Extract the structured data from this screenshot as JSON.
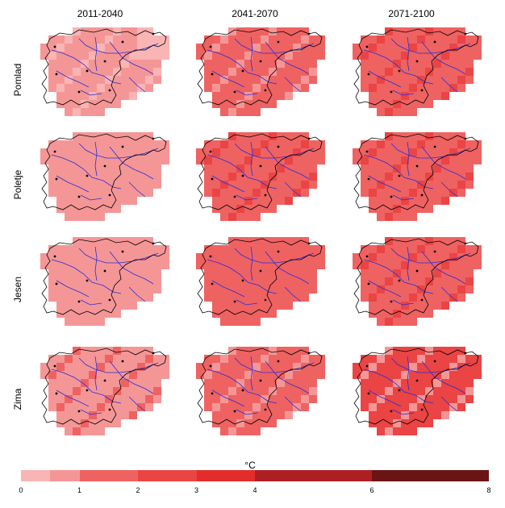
{
  "columns": [
    "2011-2040",
    "2041-2070",
    "2071-2100"
  ],
  "rows": [
    "Pomlad",
    "Poletje",
    "Jesen",
    "Zima"
  ],
  "legend": {
    "title": "°C",
    "ticks": [
      "0",
      "1",
      "2",
      "3",
      "4",
      "6",
      "8"
    ],
    "classes": [
      {
        "from": 0,
        "to": 0.5,
        "color": "#f9b4b4"
      },
      {
        "from": 0.5,
        "to": 1,
        "color": "#f59696"
      },
      {
        "from": 1,
        "to": 2,
        "color": "#ef6262"
      },
      {
        "from": 2,
        "to": 3,
        "color": "#ea4444"
      },
      {
        "from": 3,
        "to": 4,
        "color": "#e42c2c"
      },
      {
        "from": 4,
        "to": 6,
        "color": "#ad1f23"
      },
      {
        "from": 6,
        "to": 8,
        "color": "#6b1414"
      }
    ]
  },
  "panels": [
    [
      {
        "base": "#f59696",
        "accent": "#f9b4b4"
      },
      {
        "base": "#ef6262",
        "accent": "#f59696"
      },
      {
        "base": "#ef6262",
        "accent": "#ea4444"
      }
    ],
    [
      {
        "base": "#f59696",
        "accent": "#f59696"
      },
      {
        "base": "#ef6262",
        "accent": "#ea4444"
      },
      {
        "base": "#ef6262",
        "accent": "#ea4444"
      }
    ],
    [
      {
        "base": "#f59696",
        "accent": "#f59696"
      },
      {
        "base": "#ef6262",
        "accent": "#ef6262"
      },
      {
        "base": "#ef6262",
        "accent": "#ea4444"
      }
    ],
    [
      {
        "base": "#f59696",
        "accent": "#ef6262"
      },
      {
        "base": "#ef6262",
        "accent": "#f59696"
      },
      {
        "base": "#ea4444",
        "accent": "#f59696"
      }
    ]
  ],
  "colors": {
    "outline": "#000000",
    "rivers": "#2b2bd6",
    "stations": "#000000"
  }
}
